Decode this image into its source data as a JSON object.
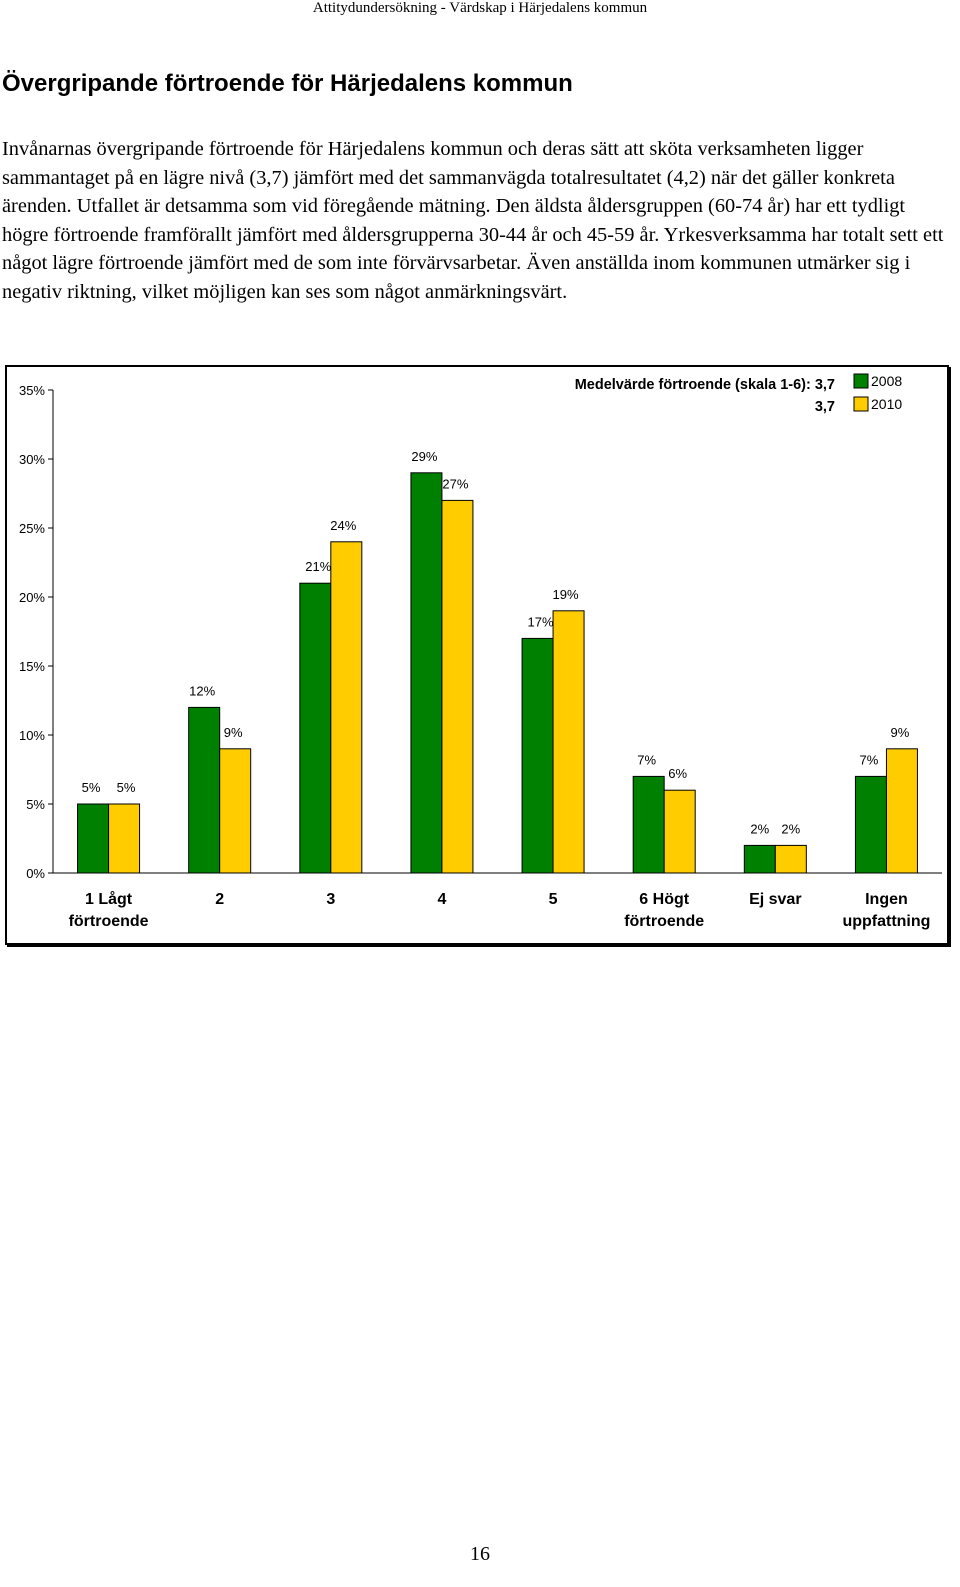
{
  "header": {
    "running_title": "Attitydundersökning - Värdskap i Härjedalens kommun"
  },
  "section": {
    "title": "Övergripande förtroende för Härjedalens kommun",
    "paragraph": "Invånarnas övergripande förtroende för Härjedalens kommun och deras sätt att sköta verksamheten ligger sammantaget på en lägre nivå (3,7) jämfört med det sammanvägda totalresultatet (4,2) när det gäller konkreta ärenden. Utfallet är detsamma som vid föregående mätning. Den äldsta åldersgruppen (60-74 år) har ett tydligt högre förtroende framförallt jämfört med åldersgrupperna 30-44 år och 45-59 år. Yrkesverksamma har totalt sett ett något lägre förtroende jämfört med de som inte förvärvsarbetar. Även anställda inom kommunen utmärker sig i negativ riktning, vilket möjligen kan ses som något anmärkningsvärt."
  },
  "chart_data": {
    "type": "bar",
    "categories": [
      [
        "1 Lågt",
        "förtroende"
      ],
      [
        "2"
      ],
      [
        "3"
      ],
      [
        "4"
      ],
      [
        "5"
      ],
      [
        "6 Högt",
        "förtroende"
      ],
      [
        "Ej svar"
      ],
      [
        "Ingen",
        "uppfattning"
      ]
    ],
    "series": [
      {
        "name": "2008",
        "color": "#008000",
        "values": [
          5,
          12,
          21,
          29,
          17,
          7,
          2,
          7
        ],
        "labels": [
          "5%",
          "12%",
          "21%",
          "29%",
          "17%",
          "7%",
          "2%",
          "7%"
        ]
      },
      {
        "name": "2010",
        "color": "#FFCC00",
        "values": [
          5,
          9,
          24,
          27,
          19,
          6,
          2,
          9
        ],
        "labels": [
          "5%",
          "9%",
          "24%",
          "27%",
          "19%",
          "6%",
          "2%",
          "9%"
        ]
      }
    ],
    "ylim": [
      0,
      35
    ],
    "yticks": [
      "0%",
      "5%",
      "10%",
      "15%",
      "20%",
      "25%",
      "30%",
      "35%"
    ],
    "annotation": {
      "label": "Medelvärde förtroende (skala 1-6):",
      "value_2008": "3,7",
      "value_2010": "3,7"
    },
    "legend_position": "top-right",
    "grid": false
  },
  "footer": {
    "page_number": "16"
  }
}
